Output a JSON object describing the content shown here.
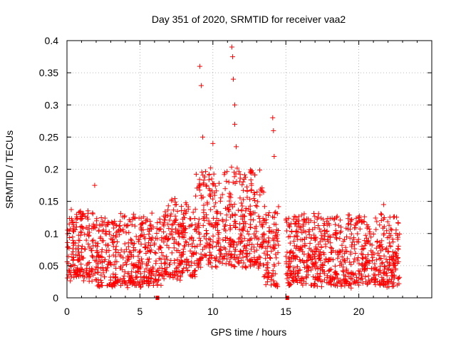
{
  "chart_data": {
    "type": "scatter",
    "title": "Day 351 of 2020, SRMTID for receiver vaa2",
    "xlabel": "GPS time / hours",
    "ylabel": "SRMTID / TECUs",
    "xlim": [
      0,
      25
    ],
    "ylim": [
      0,
      0.4
    ],
    "xticks": [
      0,
      5,
      10,
      15,
      20
    ],
    "xtick_labels": [
      "0",
      "5",
      "10",
      "15",
      "20"
    ],
    "yticks": [
      0,
      0.05,
      0.1,
      0.15,
      0.2,
      0.25,
      0.3,
      0.35,
      0.4
    ],
    "ytick_labels": [
      "0",
      "0.05",
      "0.1",
      "0.15",
      "0.2",
      "0.25",
      "0.3",
      "0.35",
      "0.4"
    ],
    "grid": true,
    "marker": "+",
    "series_color": "#ff0000",
    "data_gaps_at_zero": [
      6.2,
      15.1
    ],
    "series": [
      {
        "name": "SRMTID",
        "density_profile": [
          {
            "x_start": 0.0,
            "x_end": 2.0,
            "y_low": 0.03,
            "y_high": 0.14
          },
          {
            "x_start": 2.0,
            "x_end": 6.5,
            "y_low": 0.02,
            "y_high": 0.13
          },
          {
            "x_start": 6.5,
            "x_end": 8.8,
            "y_low": 0.03,
            "y_high": 0.15
          },
          {
            "x_start": 8.8,
            "x_end": 13.5,
            "y_low": 0.05,
            "y_high": 0.2
          },
          {
            "x_start": 13.5,
            "x_end": 14.5,
            "y_low": 0.02,
            "y_high": 0.15
          },
          {
            "x_start": 15.0,
            "x_end": 22.8,
            "y_low": 0.02,
            "y_high": 0.13
          }
        ],
        "notable_points": [
          {
            "x": 1.9,
            "y": 0.175
          },
          {
            "x": 9.1,
            "y": 0.36
          },
          {
            "x": 9.2,
            "y": 0.33
          },
          {
            "x": 9.3,
            "y": 0.25
          },
          {
            "x": 10.0,
            "y": 0.24
          },
          {
            "x": 11.3,
            "y": 0.39
          },
          {
            "x": 11.35,
            "y": 0.375
          },
          {
            "x": 11.4,
            "y": 0.34
          },
          {
            "x": 11.5,
            "y": 0.3
          },
          {
            "x": 11.5,
            "y": 0.27
          },
          {
            "x": 11.6,
            "y": 0.235
          },
          {
            "x": 14.1,
            "y": 0.28
          },
          {
            "x": 14.15,
            "y": 0.26
          },
          {
            "x": 14.2,
            "y": 0.22
          },
          {
            "x": 21.7,
            "y": 0.145
          }
        ]
      }
    ]
  }
}
